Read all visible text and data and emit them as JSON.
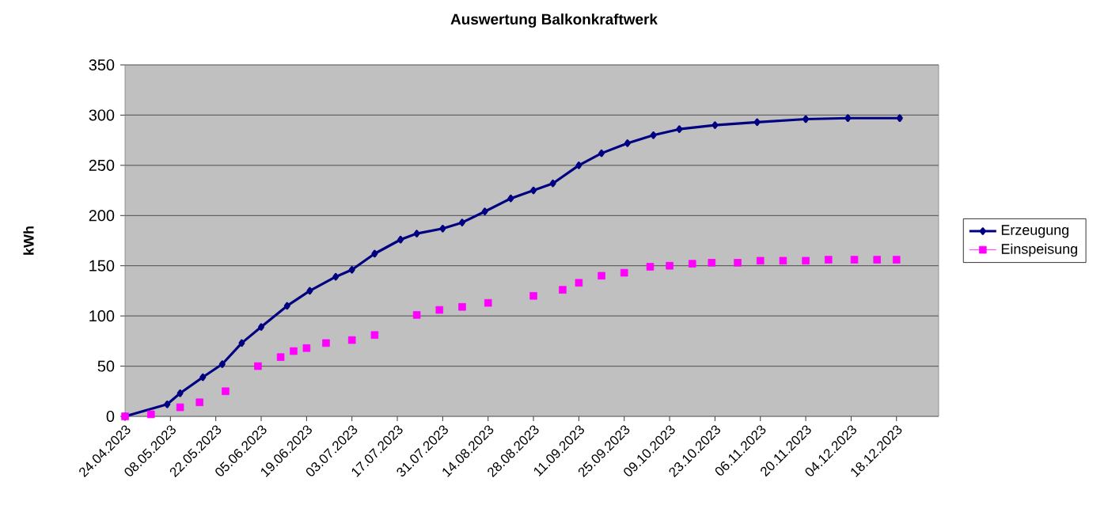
{
  "chart_data": {
    "type": "line",
    "title": "Auswertung Balkonkraftwerk",
    "ylabel": "kWh",
    "xlim": [
      "2023-04-24",
      "2023-12-31"
    ],
    "xticks": [
      {
        "value": "2023-04-24",
        "label": "24.04.2023"
      },
      {
        "value": "2023-05-08",
        "label": "08.05.2023"
      },
      {
        "value": "2023-05-22",
        "label": "22.05.2023"
      },
      {
        "value": "2023-06-05",
        "label": "05.06.2023"
      },
      {
        "value": "2023-06-19",
        "label": "19.06.2023"
      },
      {
        "value": "2023-07-03",
        "label": "03.07.2023"
      },
      {
        "value": "2023-07-17",
        "label": "17.07.2023"
      },
      {
        "value": "2023-07-31",
        "label": "31.07.2023"
      },
      {
        "value": "2023-08-14",
        "label": "14.08.2023"
      },
      {
        "value": "2023-08-28",
        "label": "28.08.2023"
      },
      {
        "value": "2023-09-11",
        "label": "11.09.2023"
      },
      {
        "value": "2023-09-25",
        "label": "25.09.2023"
      },
      {
        "value": "2023-10-09",
        "label": "09.10.2023"
      },
      {
        "value": "2023-10-23",
        "label": "23.10.2023"
      },
      {
        "value": "2023-11-06",
        "label": "06.11.2023"
      },
      {
        "value": "2023-11-20",
        "label": "20.11.2023"
      },
      {
        "value": "2023-12-04",
        "label": "04.12.2023"
      },
      {
        "value": "2023-12-18",
        "label": "18.12.2023"
      }
    ],
    "ylim": [
      0,
      350
    ],
    "yticks": [
      0,
      50,
      100,
      150,
      200,
      250,
      300,
      350
    ],
    "grid": "y",
    "legend": "right",
    "series": [
      {
        "name": "Erzeugung",
        "marker": "diamond",
        "color": "#000080",
        "x": [
          "2023-04-24",
          "2023-05-07",
          "2023-05-11",
          "2023-05-18",
          "2023-05-24",
          "2023-05-30",
          "2023-06-05",
          "2023-06-13",
          "2023-06-20",
          "2023-06-28",
          "2023-07-03",
          "2023-07-10",
          "2023-07-18",
          "2023-07-23",
          "2023-07-31",
          "2023-08-06",
          "2023-08-13",
          "2023-08-21",
          "2023-08-28",
          "2023-09-03",
          "2023-09-11",
          "2023-09-18",
          "2023-09-26",
          "2023-10-04",
          "2023-10-12",
          "2023-10-23",
          "2023-11-05",
          "2023-11-20",
          "2023-12-03",
          "2023-12-19"
        ],
        "values": [
          0,
          12,
          23,
          39,
          52,
          73,
          89,
          110,
          125,
          139,
          146,
          162,
          176,
          182,
          187,
          193,
          204,
          217,
          225,
          232,
          250,
          262,
          272,
          280,
          286,
          290,
          293,
          296,
          297,
          297
        ]
      },
      {
        "name": "Einspeisung",
        "type": "scatter",
        "marker": "square",
        "color": "#ff00ff",
        "x": [
          "2023-04-24",
          "2023-05-02",
          "2023-05-11",
          "2023-05-17",
          "2023-05-25",
          "2023-06-04",
          "2023-06-11",
          "2023-06-15",
          "2023-06-19",
          "2023-06-25",
          "2023-07-03",
          "2023-07-10",
          "2023-07-23",
          "2023-07-30",
          "2023-08-06",
          "2023-08-14",
          "2023-08-28",
          "2023-09-06",
          "2023-09-11",
          "2023-09-18",
          "2023-09-25",
          "2023-10-03",
          "2023-10-09",
          "2023-10-16",
          "2023-10-22",
          "2023-10-30",
          "2023-11-06",
          "2023-11-13",
          "2023-11-20",
          "2023-11-27",
          "2023-12-05",
          "2023-12-12",
          "2023-12-18"
        ],
        "values": [
          0,
          2,
          9,
          14,
          25,
          50,
          59,
          65,
          68,
          73,
          76,
          81,
          101,
          106,
          109,
          113,
          120,
          126,
          133,
          140,
          143,
          149,
          150,
          152,
          153,
          153,
          155,
          155,
          155,
          156,
          156,
          156,
          156
        ]
      }
    ]
  }
}
